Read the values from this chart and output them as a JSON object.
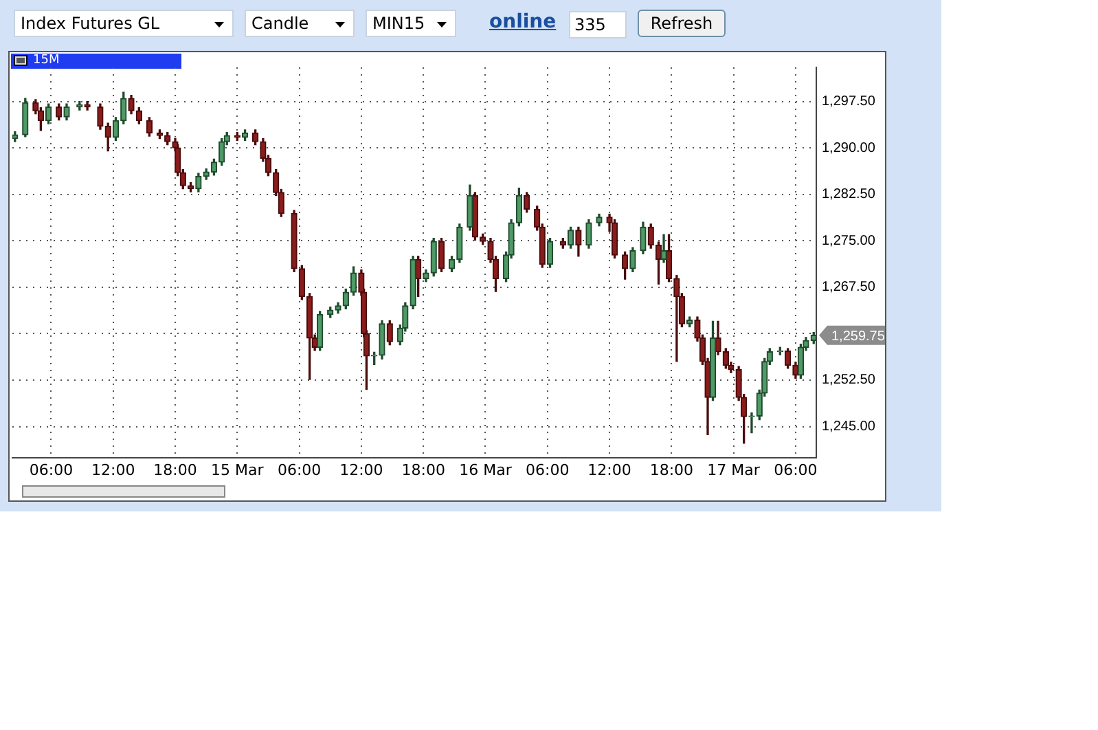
{
  "chart_data": {
    "type": "candlestick",
    "title": "15M",
    "annotations": [
      "Index Futures GL",
      "Candle",
      "MIN15",
      "online",
      "335",
      "Refresh",
      "1,259.75"
    ],
    "x": [
      "--03-14T02:30",
      "--03-14T03:30",
      "--03-14T04:30",
      "--03-14T05:00",
      "--03-14T05:45",
      "--03-14T06:45",
      "--03-14T07:30",
      "--03-14T08:45",
      "--03-14T09:30",
      "--03-14T10:45",
      "--03-14T11:30",
      "--03-14T12:15",
      "--03-14T13:00",
      "--03-14T13:45",
      "--03-14T14:30",
      "--03-14T15:30",
      "--03-14T16:30",
      "--03-14T17:15",
      "--03-14T18:00",
      "--03-14T18:15",
      "--03-14T18:45",
      "--03-14T19:30",
      "--03-14T20:15",
      "--03-14T21:00",
      "--03-14T21:45",
      "--03-14T22:30",
      "--03-14T23:00",
      "--03-15T00:00",
      "--03-15T00:45",
      "--03-15T01:45",
      "--03-15T02:30",
      "--03-15T03:00",
      "--03-15T03:45",
      "--03-15T04:15",
      "--03-15T05:30",
      "--03-15T06:15",
      "--03-15T07:00",
      "--03-15T07:30",
      "--03-15T08:00",
      "--03-15T09:00",
      "--03-15T09:45",
      "--03-15T10:30",
      "--03-15T11:15",
      "--03-15T12:00",
      "--03-15T12:15",
      "--03-15T12:30",
      "--03-15T13:15",
      "--03-15T14:00",
      "--03-15T14:45",
      "--03-15T15:45",
      "--03-15T16:15",
      "--03-15T17:00",
      "--03-15T17:30",
      "--03-15T18:15",
      "--03-15T19:00",
      "--03-15T19:45",
      "--03-15T20:45",
      "--03-15T21:30",
      "--03-15T22:30",
      "--03-15T23:00",
      "--03-15T23:45",
      "--03-16T00:30",
      "--03-16T01:00",
      "--03-16T02:00",
      "--03-16T02:30",
      "--03-16T03:15",
      "--03-16T04:00",
      "--03-16T05:00",
      "--03-16T05:30",
      "--03-16T06:15",
      "--03-16T07:30",
      "--03-16T08:15",
      "--03-16T09:00",
      "--03-16T10:00",
      "--03-16T11:00",
      "--03-16T12:00",
      "--03-16T12:30",
      "--03-16T13:30",
      "--03-16T14:15",
      "--03-16T15:15",
      "--03-16T16:00",
      "--03-16T16:45",
      "--03-16T17:15",
      "--03-16T17:45",
      "--03-16T18:30",
      "--03-16T19:00",
      "--03-16T19:45",
      "--03-16T20:30",
      "--03-16T21:00",
      "--03-16T21:30",
      "--03-16T22:00",
      "--03-16T22:30",
      "--03-16T23:15",
      "--03-16T23:45",
      "--03-17T00:30",
      "--03-17T01:00",
      "--03-17T01:45",
      "--03-17T02:30",
      "--03-17T03:00",
      "--03-17T03:30",
      "--03-17T04:30",
      "--03-17T05:15",
      "--03-17T06:00",
      "--03-17T06:30",
      "--03-17T07:00",
      "--03-17T07:45"
    ],
    "ohlc": [
      [
        1291.5,
        1292.6,
        1291.0,
        1292.1
      ],
      [
        1292.1,
        1298.0,
        1291.8,
        1297.3
      ],
      [
        1297.3,
        1297.8,
        1295.5,
        1296.0
      ],
      [
        1296.0,
        1296.5,
        1292.8,
        1294.4
      ],
      [
        1294.4,
        1297.1,
        1293.9,
        1296.6
      ],
      [
        1296.6,
        1297.1,
        1294.5,
        1295.0
      ],
      [
        1295.0,
        1297.1,
        1294.5,
        1296.6
      ],
      [
        1296.6,
        1297.5,
        1296.1,
        1297.0
      ],
      [
        1297.0,
        1297.5,
        1296.1,
        1296.6
      ],
      [
        1296.6,
        1297.1,
        1293.0,
        1293.5
      ],
      [
        1293.5,
        1294.0,
        1289.5,
        1291.7
      ],
      [
        1291.7,
        1294.9,
        1291.2,
        1294.4
      ],
      [
        1294.4,
        1299.0,
        1293.9,
        1298.0
      ],
      [
        1298.0,
        1298.5,
        1295.5,
        1296.0
      ],
      [
        1296.0,
        1296.5,
        1293.9,
        1294.4
      ],
      [
        1294.4,
        1294.9,
        1291.9,
        1292.4
      ],
      [
        1292.4,
        1292.9,
        1291.5,
        1292.0
      ],
      [
        1292.0,
        1292.5,
        1290.5,
        1291.0
      ],
      [
        1291.0,
        1291.5,
        1289.5,
        1290.0
      ],
      [
        1290.0,
        1290.5,
        1285.5,
        1286.0
      ],
      [
        1286.0,
        1286.5,
        1283.4,
        1283.9
      ],
      [
        1283.9,
        1284.4,
        1282.9,
        1283.4
      ],
      [
        1283.4,
        1285.9,
        1282.9,
        1285.4
      ],
      [
        1285.4,
        1286.6,
        1284.9,
        1286.1
      ],
      [
        1286.1,
        1288.2,
        1285.6,
        1287.7
      ],
      [
        1287.7,
        1291.5,
        1287.2,
        1291.0
      ],
      [
        1291.0,
        1292.5,
        1290.5,
        1292.0
      ],
      [
        1292.0,
        1292.5,
        1291.2,
        1291.7
      ],
      [
        1291.7,
        1292.9,
        1291.2,
        1292.4
      ],
      [
        1292.4,
        1292.9,
        1290.5,
        1291.0
      ],
      [
        1291.0,
        1291.5,
        1287.8,
        1288.3
      ],
      [
        1288.3,
        1288.8,
        1285.5,
        1286.0
      ],
      [
        1286.0,
        1286.5,
        1282.3,
        1282.8
      ],
      [
        1282.8,
        1283.3,
        1278.9,
        1279.4
      ],
      [
        1279.4,
        1279.9,
        1270.0,
        1270.5
      ],
      [
        1270.5,
        1271.0,
        1265.5,
        1266.0
      ],
      [
        1266.0,
        1266.5,
        1252.6,
        1259.3
      ],
      [
        1259.3,
        1259.8,
        1257.3,
        1257.8
      ],
      [
        1257.8,
        1263.6,
        1257.3,
        1263.1
      ],
      [
        1263.1,
        1264.3,
        1262.6,
        1263.8
      ],
      [
        1263.8,
        1265.0,
        1263.3,
        1264.5
      ],
      [
        1264.5,
        1267.2,
        1264.0,
        1266.7
      ],
      [
        1266.7,
        1270.8,
        1266.2,
        1269.8
      ],
      [
        1269.8,
        1270.3,
        1266.2,
        1266.7
      ],
      [
        1266.7,
        1267.2,
        1259.5,
        1260.0
      ],
      [
        1260.0,
        1260.5,
        1251.0,
        1256.4
      ],
      [
        1256.4,
        1257.0,
        1255.0,
        1256.5
      ],
      [
        1256.5,
        1262.1,
        1255.9,
        1261.6
      ],
      [
        1261.6,
        1262.1,
        1258.2,
        1258.7
      ],
      [
        1258.7,
        1261.4,
        1258.2,
        1260.9
      ],
      [
        1260.9,
        1265.0,
        1260.4,
        1264.5
      ],
      [
        1264.5,
        1272.5,
        1264.0,
        1272.0
      ],
      [
        1272.0,
        1272.5,
        1266.0,
        1268.9
      ],
      [
        1268.9,
        1270.3,
        1268.4,
        1269.8
      ],
      [
        1269.8,
        1275.4,
        1269.3,
        1274.9
      ],
      [
        1274.9,
        1275.4,
        1270.0,
        1270.5
      ],
      [
        1270.5,
        1272.5,
        1270.0,
        1272.0
      ],
      [
        1272.0,
        1277.7,
        1271.5,
        1277.2
      ],
      [
        1277.2,
        1284.0,
        1276.7,
        1282.3
      ],
      [
        1282.3,
        1282.8,
        1275.1,
        1275.6
      ],
      [
        1275.6,
        1276.1,
        1274.4,
        1274.9
      ],
      [
        1274.9,
        1275.4,
        1271.5,
        1272.0
      ],
      [
        1272.0,
        1272.5,
        1266.8,
        1268.9
      ],
      [
        1268.9,
        1273.2,
        1268.4,
        1272.7
      ],
      [
        1272.7,
        1278.4,
        1272.2,
        1277.9
      ],
      [
        1277.9,
        1283.5,
        1277.4,
        1282.3
      ],
      [
        1282.3,
        1282.8,
        1279.6,
        1280.1
      ],
      [
        1280.1,
        1280.6,
        1276.7,
        1277.2
      ],
      [
        1277.2,
        1277.7,
        1270.7,
        1271.2
      ],
      [
        1271.2,
        1275.4,
        1270.7,
        1274.9
      ],
      [
        1274.9,
        1275.4,
        1273.8,
        1274.3
      ],
      [
        1274.3,
        1277.2,
        1273.8,
        1276.7
      ],
      [
        1276.7,
        1277.2,
        1272.5,
        1274.3
      ],
      [
        1274.3,
        1278.4,
        1273.8,
        1277.9
      ],
      [
        1277.9,
        1279.3,
        1277.4,
        1278.8
      ],
      [
        1278.8,
        1279.3,
        1276.5,
        1277.9
      ],
      [
        1277.9,
        1278.4,
        1272.2,
        1272.7
      ],
      [
        1272.7,
        1273.2,
        1268.8,
        1270.5
      ],
      [
        1270.5,
        1273.9,
        1270.0,
        1273.4
      ],
      [
        1273.4,
        1278.0,
        1272.9,
        1277.2
      ],
      [
        1277.2,
        1277.7,
        1273.8,
        1274.3
      ],
      [
        1274.3,
        1274.8,
        1268.0,
        1272.0
      ],
      [
        1272.0,
        1276.0,
        1271.5,
        1273.4
      ],
      [
        1273.4,
        1276.0,
        1268.4,
        1268.9
      ],
      [
        1268.9,
        1269.4,
        1255.5,
        1266.0
      ],
      [
        1266.0,
        1266.5,
        1261.1,
        1261.6
      ],
      [
        1261.6,
        1262.7,
        1261.1,
        1262.2
      ],
      [
        1262.2,
        1262.7,
        1258.8,
        1259.3
      ],
      [
        1259.3,
        1259.8,
        1255.0,
        1255.5
      ],
      [
        1255.5,
        1256.0,
        1243.7,
        1249.7
      ],
      [
        1249.7,
        1262.0,
        1249.2,
        1259.3
      ],
      [
        1259.3,
        1262.0,
        1256.6,
        1257.1
      ],
      [
        1257.1,
        1257.6,
        1254.4,
        1254.9
      ],
      [
        1254.9,
        1255.4,
        1253.7,
        1254.2
      ],
      [
        1254.2,
        1254.7,
        1249.2,
        1249.7
      ],
      [
        1249.7,
        1250.2,
        1242.3,
        1246.6
      ],
      [
        1246.6,
        1247.2,
        1244.0,
        1246.7
      ],
      [
        1246.7,
        1250.9,
        1246.1,
        1250.4
      ],
      [
        1250.4,
        1256.0,
        1249.9,
        1255.5
      ],
      [
        1255.5,
        1257.6,
        1255.0,
        1257.1
      ],
      [
        1257.1,
        1257.8,
        1256.6,
        1257.2
      ],
      [
        1257.2,
        1257.6,
        1254.4,
        1254.9
      ],
      [
        1254.9,
        1255.4,
        1252.8,
        1253.3
      ],
      [
        1253.3,
        1258.3,
        1252.8,
        1257.8
      ],
      [
        1257.8,
        1259.4,
        1257.3,
        1258.9
      ],
      [
        1258.9,
        1260.2,
        1258.4,
        1259.75
      ]
    ],
    "xlim": [
      "--03-14T02:15",
      "--03-17T08:00"
    ],
    "xticks": [
      {
        "value": "--03-14T06:00",
        "label": "06:00"
      },
      {
        "value": "--03-14T12:00",
        "label": "12:00"
      },
      {
        "value": "--03-14T18:00",
        "label": "18:00"
      },
      {
        "value": "--03-15",
        "label": "15 Mar"
      },
      {
        "value": "--03-15T06:00",
        "label": "06:00"
      },
      {
        "value": "--03-15T12:00",
        "label": "12:00"
      },
      {
        "value": "--03-15T18:00",
        "label": "18:00"
      },
      {
        "value": "--03-16",
        "label": "16 Mar"
      },
      {
        "value": "--03-16T06:00",
        "label": "06:00"
      },
      {
        "value": "--03-16T12:00",
        "label": "12:00"
      },
      {
        "value": "--03-16T18:00",
        "label": "18:00"
      },
      {
        "value": "--03-17",
        "label": "17 Mar"
      },
      {
        "value": "--03-17T06:00",
        "label": "06:00"
      }
    ],
    "ylim": [
      1240,
      1303
    ],
    "yticks": [
      {
        "value": 1245,
        "label": "1,245.00"
      },
      {
        "value": 1252.5,
        "label": "1,252.50"
      },
      {
        "value": 1260,
        "label": null
      },
      {
        "value": 1267.5,
        "label": "1,267.50"
      },
      {
        "value": 1275,
        "label": "1,275.00"
      },
      {
        "value": 1282.5,
        "label": "1,282.50"
      },
      {
        "value": 1290,
        "label": "1,290.00"
      },
      {
        "value": 1297.5,
        "label": "1,297.50"
      }
    ],
    "grid": true
  }
}
